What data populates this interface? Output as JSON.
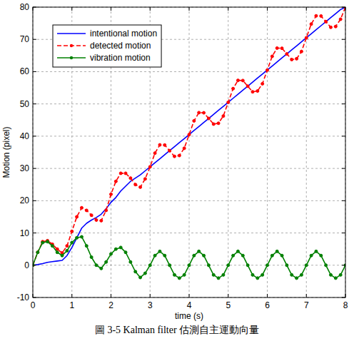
{
  "chart_data": {
    "type": "line",
    "title": "圖 3-5 Kalman filter 估測自主運動向量",
    "x_label": "time (s)",
    "y_label": "Motion (pixel)",
    "x": [
      0,
      0.125,
      0.25,
      0.375,
      0.5,
      0.625,
      0.75,
      0.875,
      1,
      1.125,
      1.25,
      1.375,
      1.5,
      1.625,
      1.75,
      1.875,
      2,
      2.125,
      2.25,
      2.375,
      2.5,
      2.625,
      2.75,
      2.875,
      3,
      3.125,
      3.25,
      3.375,
      3.5,
      3.625,
      3.75,
      3.875,
      4,
      4.125,
      4.25,
      4.375,
      4.5,
      4.625,
      4.75,
      4.875,
      5,
      5.125,
      5.25,
      5.375,
      5.5,
      5.625,
      5.75,
      5.875,
      6,
      6.125,
      6.25,
      6.375,
      6.5,
      6.625,
      6.75,
      6.875,
      7,
      7.125,
      7.25,
      7.375,
      7.5,
      7.625,
      7.75,
      7.875,
      8
    ],
    "series": [
      {
        "name": "intentional motion",
        "color": "#0000ff",
        "marker": "none",
        "line_style": "solid",
        "values": [
          0,
          0.2,
          0.5,
          0.9,
          1.1,
          1.3,
          1.5,
          3,
          5.5,
          8.5,
          11.5,
          13,
          14,
          14.8,
          15.8,
          17.5,
          19.5,
          21,
          23,
          24.5,
          26,
          27,
          28,
          29.25,
          30.5,
          31.75,
          33,
          34.25,
          35.5,
          36.75,
          38,
          39.25,
          40.5,
          41.75,
          43,
          44.25,
          45.5,
          46.75,
          48,
          49.25,
          50.5,
          51.75,
          53,
          54.25,
          55.5,
          56.75,
          58,
          59.25,
          60.5,
          61.75,
          63,
          64.25,
          65.5,
          66.75,
          68,
          69.25,
          70.5,
          71.75,
          73,
          74.25,
          75.5,
          76.75,
          78,
          79.25,
          80
        ]
      },
      {
        "name": "detected motion",
        "color": "#ff0000",
        "marker": "dot",
        "line_style": "dashed",
        "values": [
          0,
          4,
          7.3,
          7.6,
          6.5,
          5,
          3.8,
          6,
          10.5,
          15,
          17.8,
          17,
          15.5,
          14,
          13.8,
          17,
          22,
          26,
          28.5,
          28.5,
          27,
          25,
          24.2,
          26.75,
          30.5,
          34.75,
          37.3,
          37.25,
          35.5,
          33.75,
          34,
          36.25,
          40.5,
          44.75,
          47.3,
          47.25,
          45.5,
          43.75,
          44,
          46.25,
          50.5,
          54.75,
          57.3,
          57.25,
          55.5,
          53.75,
          54,
          56.25,
          60.5,
          64.75,
          67.3,
          67.25,
          65.5,
          63.75,
          64,
          66.25,
          70.5,
          74.75,
          77.3,
          77.25,
          75.5,
          73.75,
          74,
          76.25,
          80
        ]
      },
      {
        "name": "vibration motion",
        "color": "#008000",
        "marker": "dot",
        "line_style": "solid",
        "values": [
          0,
          4,
          7,
          7.3,
          6,
          4,
          3,
          4.5,
          7,
          8.5,
          8.8,
          6,
          2.5,
          0,
          -1,
          1,
          3.5,
          5,
          5.5,
          4,
          1,
          -2,
          -3.8,
          -2.5,
          0,
          3,
          4.3,
          3,
          0,
          -3,
          -4,
          -3,
          0,
          3,
          4.3,
          3,
          0,
          -3,
          -4,
          -3,
          0,
          3,
          4.3,
          3,
          0,
          -3,
          -4,
          -3,
          0,
          3,
          4.3,
          3,
          0,
          -3,
          -4,
          -3,
          0,
          3,
          4.3,
          3,
          0,
          -3,
          -4,
          -3,
          0
        ]
      }
    ],
    "xlim": [
      0,
      8
    ],
    "ylim": [
      -10,
      80
    ],
    "xticks": [
      0,
      1,
      2,
      3,
      4,
      5,
      6,
      7,
      8
    ],
    "yticks": [
      -10,
      0,
      10,
      20,
      30,
      40,
      50,
      60,
      70,
      80
    ],
    "grid": true,
    "legend": "upper left"
  }
}
